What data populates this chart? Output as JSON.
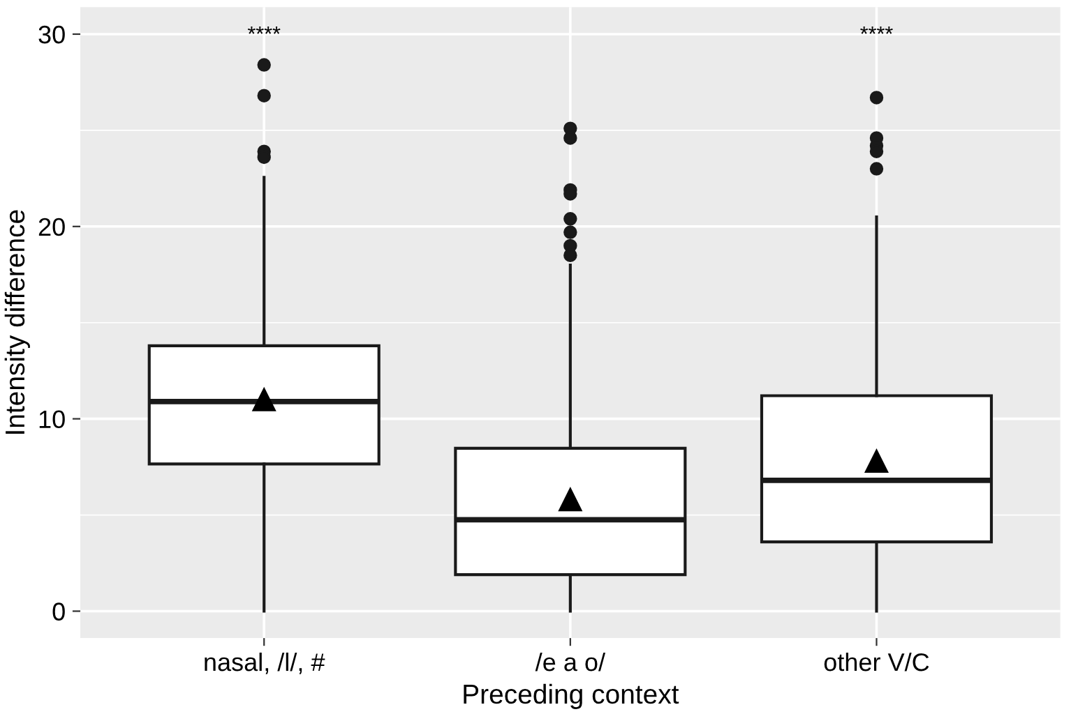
{
  "chart_data": {
    "type": "box",
    "xlabel": "Preceding context",
    "ylabel": "Intensity difference",
    "categories": [
      "nasal, /l/, #",
      "/e a o/",
      "other V/C"
    ],
    "boxes": [
      {
        "low": 0,
        "q1": 7.65,
        "median": 10.9,
        "q3": 13.8,
        "high": 22.55,
        "mean": 11.0,
        "outliers": [
          28.4,
          26.8,
          23.9,
          23.6
        ]
      },
      {
        "low": 0,
        "q1": 1.9,
        "median": 4.75,
        "q3": 8.47,
        "high": 18.0,
        "mean": 5.8,
        "outliers": [
          25.1,
          24.6,
          21.9,
          21.7,
          20.4,
          19.7,
          19.0,
          18.5
        ]
      },
      {
        "low": 0,
        "q1": 3.6,
        "median": 6.8,
        "q3": 11.2,
        "high": 20.5,
        "mean": 7.8,
        "outliers": [
          26.7,
          24.6,
          24.2,
          23.9,
          23.0
        ]
      }
    ],
    "ylim": [
      -1.4,
      31.4
    ],
    "yticks": [
      0,
      10,
      20,
      30
    ],
    "grid": true,
    "legend": false,
    "annotations": [
      "****",
      "****"
    ]
  }
}
